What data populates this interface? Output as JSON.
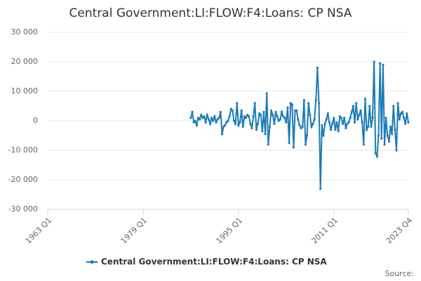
{
  "chart_data": {
    "type": "line",
    "title": "Central Government:LI:FLOW:F4:Loans: CP NSA",
    "source": "Source:",
    "categories": [
      "1963 Q1",
      null,
      null,
      null,
      null,
      null,
      null,
      null,
      null,
      null,
      null,
      null,
      null,
      null,
      null,
      null,
      null,
      null,
      null,
      null,
      null,
      null,
      null,
      null,
      null,
      null,
      null,
      null,
      null,
      null,
      null,
      null,
      null,
      null,
      null,
      null,
      null,
      null,
      null,
      null,
      null,
      null,
      null,
      null,
      null,
      null,
      null,
      null,
      null,
      null,
      null,
      null,
      null,
      null,
      null,
      null,
      null,
      null,
      null,
      null,
      null,
      null,
      null,
      null,
      "1979 Q1",
      null,
      null,
      null,
      null,
      null,
      null,
      null,
      null,
      null,
      null,
      null,
      null,
      null,
      null,
      null,
      null,
      null,
      null,
      null,
      null,
      null,
      null,
      null,
      null,
      null,
      null,
      null,
      null,
      null,
      null,
      null,
      null,
      null,
      null,
      null,
      null,
      null,
      null,
      null,
      null,
      null,
      null,
      null,
      null,
      null,
      null,
      null,
      null,
      null,
      null,
      null,
      null,
      null,
      null,
      null,
      null,
      null,
      null,
      null,
      null,
      null,
      null,
      null,
      "1995 Q1",
      null,
      null,
      null,
      null,
      null,
      null,
      null,
      null,
      null,
      null,
      null,
      null,
      null,
      null,
      null,
      null,
      null,
      null,
      null,
      null,
      null,
      null,
      null,
      null,
      null,
      null,
      null,
      null,
      null,
      null,
      null,
      null,
      null,
      null,
      null,
      null,
      null,
      null,
      null,
      null,
      null,
      null,
      null,
      null,
      null,
      null,
      null,
      null,
      null,
      null,
      null,
      null,
      null,
      null,
      null,
      null,
      null,
      null,
      null,
      null,
      null,
      null,
      null,
      "2011 Q1",
      null,
      null,
      null,
      null,
      null,
      null,
      null,
      null,
      null,
      null,
      null,
      null,
      null,
      null,
      null,
      null,
      null,
      null,
      null,
      null,
      null,
      null,
      null,
      null,
      null,
      null,
      null,
      null,
      null,
      null,
      null,
      null,
      null,
      null,
      null,
      null,
      null,
      null,
      null,
      null,
      null,
      null,
      null,
      null,
      null,
      null,
      null,
      null,
      null,
      "2023 Q4"
    ],
    "series": [
      {
        "name": "Central Government:LI:FLOW:F4:Loans: CP NSA",
        "color": "#1a7bb8",
        "values": [
          null,
          null,
          null,
          null,
          null,
          null,
          null,
          null,
          null,
          null,
          null,
          null,
          null,
          null,
          null,
          null,
          null,
          null,
          null,
          null,
          null,
          null,
          null,
          null,
          null,
          null,
          null,
          null,
          null,
          null,
          null,
          null,
          null,
          null,
          null,
          null,
          null,
          null,
          null,
          null,
          null,
          null,
          null,
          null,
          null,
          null,
          null,
          null,
          null,
          null,
          null,
          null,
          null,
          null,
          null,
          null,
          null,
          null,
          null,
          null,
          null,
          null,
          null,
          null,
          null,
          null,
          null,
          null,
          null,
          null,
          null,
          null,
          null,
          null,
          null,
          null,
          null,
          null,
          null,
          null,
          null,
          null,
          null,
          null,
          null,
          null,
          null,
          null,
          null,
          null,
          null,
          null,
          null,
          null,
          null,
          null,
          1000,
          3000,
          -500,
          0,
          -1500,
          1000,
          500,
          2000,
          1000,
          1500,
          -500,
          2000,
          500,
          -1000,
          1000,
          0,
          1500,
          -500,
          500,
          1000,
          3000,
          -4500,
          -2000,
          -1500,
          -500,
          0,
          1500,
          4000,
          3500,
          0,
          -1000,
          6000,
          -1500,
          -500,
          3500,
          -2000,
          1500,
          1000,
          2000,
          1500,
          -1000,
          -2500,
          1500,
          6000,
          -3000,
          -1000,
          2500,
          2000,
          -3500,
          3000,
          -4500,
          9300,
          -8000,
          -2000,
          3500,
          2000,
          -1000,
          3000,
          1500,
          0,
          500,
          3000,
          1500,
          1000,
          -500,
          4500,
          -7500,
          6000,
          5500,
          -9000,
          3500,
          3500,
          500,
          -1500,
          -2500,
          -2000,
          7000,
          -8000,
          -5000,
          6000,
          2000,
          -2000,
          -1000,
          500,
          7000,
          18000,
          6000,
          -23000,
          -1500,
          -5000,
          -1000,
          500,
          2500,
          -500,
          -3000,
          -1000,
          1000,
          -3000,
          -500,
          -3500,
          1500,
          1000,
          -1000,
          1000,
          -2500,
          -1000,
          -500,
          1000,
          3000,
          5000,
          -500,
          6000,
          500,
          2000,
          3500,
          -500,
          -8000,
          7500,
          -3000,
          -2000,
          5000,
          -2000,
          1000,
          20000,
          -11000,
          -12000,
          -5000,
          19500,
          -6000,
          19000,
          -8000,
          1000,
          -5000,
          -7000,
          -2000,
          -4500,
          5000,
          -3000,
          -10000,
          6000,
          500,
          2500,
          3000,
          1000,
          -1000,
          2500,
          -500
        ]
      }
    ],
    "ylim": [
      -30000,
      30000
    ],
    "yticks": [
      {
        "value": -30000,
        "label": "-30 000"
      },
      {
        "value": -20000,
        "label": "-20 000"
      },
      {
        "value": -10000,
        "label": "-10 000"
      },
      0,
      {
        "value": 10000,
        "label": "10 000"
      },
      {
        "value": 20000,
        "label": "20 000"
      },
      {
        "value": 30000,
        "label": "30 000"
      }
    ],
    "grid": true
  }
}
